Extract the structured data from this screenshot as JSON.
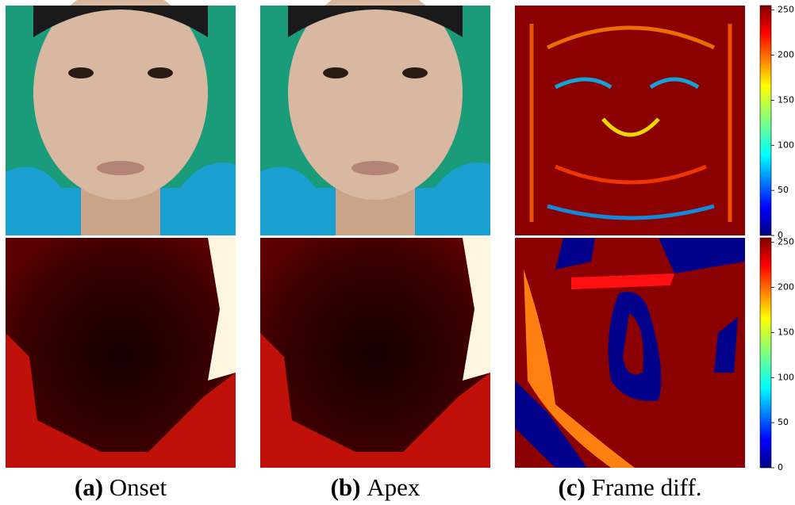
{
  "panels": [
    {
      "label": "(a)",
      "text": "Onset"
    },
    {
      "label": "(b)",
      "text": "Apex"
    },
    {
      "label": "(c)",
      "text": "Frame diff."
    }
  ],
  "colorbars": [
    {
      "lim": [
        0,
        255
      ],
      "ticks": [
        0,
        50,
        100,
        150,
        200,
        250
      ]
    },
    {
      "lim": [
        0,
        255
      ],
      "ticks": [
        0,
        50,
        100,
        150,
        200,
        250
      ]
    }
  ]
}
